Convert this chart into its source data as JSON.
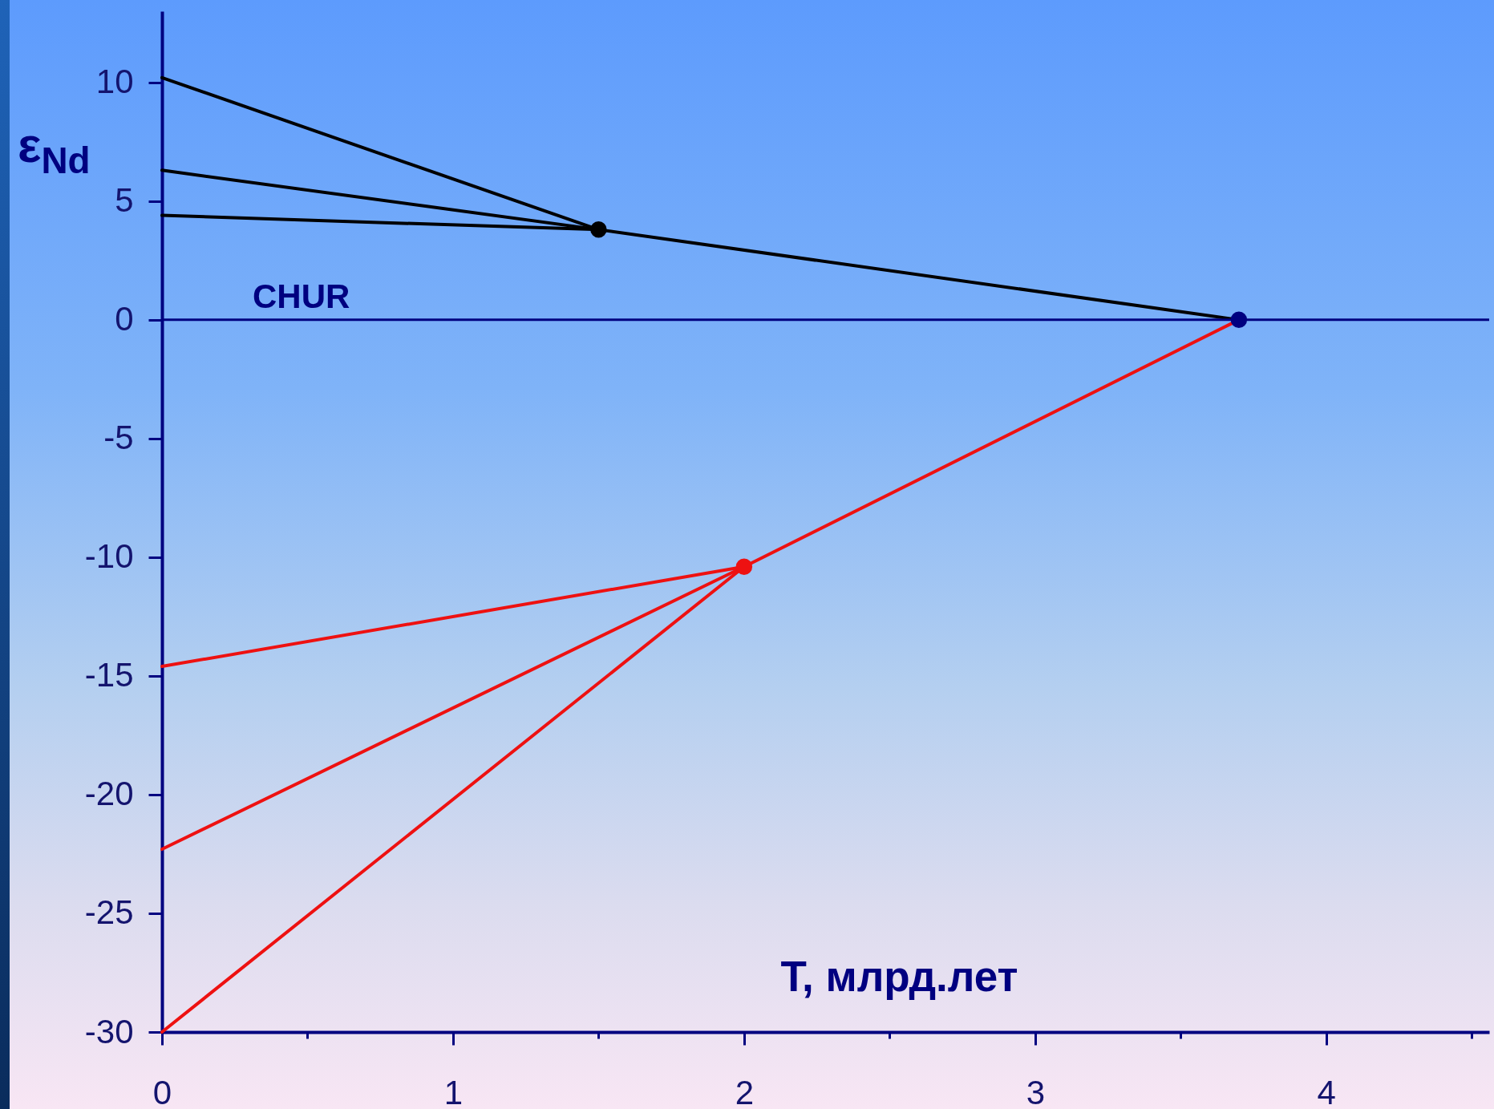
{
  "chart_data": {
    "type": "line",
    "xlabel": "T, млрд.лет",
    "ylabel": "ε$_{Nd}$",
    "xlim": [
      0,
      4.56
    ],
    "xticks": [
      0,
      {
        "value": 0.5,
        "label": null
      },
      1,
      {
        "value": 1.5,
        "label": null
      },
      2,
      {
        "value": 2.5,
        "label": null
      },
      3,
      {
        "value": 3.5,
        "label": null
      },
      4,
      {
        "value": 4.5,
        "label": null
      }
    ],
    "ylim": [
      -30,
      13
    ],
    "yticks": [
      -30,
      -25,
      -20,
      -15,
      -10,
      -5,
      0,
      5,
      10
    ],
    "line_style": "solid",
    "ref_lines": [
      {
        "axis": "y",
        "value": 0,
        "label": "CHUR",
        "color": "#000080"
      }
    ],
    "series": [
      {
        "color": "#000000",
        "x": [
          0,
          1.5,
          3.7
        ],
        "values": [
          10.2,
          3.8,
          0
        ]
      },
      {
        "color": "#000000",
        "x": [
          0,
          1.5
        ],
        "values": [
          6.3,
          3.8
        ]
      },
      {
        "color": "#000000",
        "x": [
          0,
          1.5
        ],
        "values": [
          4.4,
          3.8
        ]
      },
      {
        "color": "#ee1111",
        "x": [
          0,
          2,
          3.7
        ],
        "values": [
          -14.6,
          -10.4,
          0
        ]
      },
      {
        "color": "#ee1111",
        "x": [
          0,
          2
        ],
        "values": [
          -22.3,
          -10.4
        ]
      },
      {
        "color": "#ee1111",
        "x": [
          0,
          2
        ],
        "values": [
          -30,
          -10.4
        ]
      },
      {
        "type": "scatter",
        "marker": "circle",
        "color": "#000000",
        "x": [
          1.5
        ],
        "values": [
          3.8
        ]
      },
      {
        "type": "scatter",
        "marker": "circle",
        "color": "#ee1111",
        "x": [
          2
        ],
        "values": [
          -10.4
        ]
      },
      {
        "type": "scatter",
        "marker": "circle",
        "color": "#000080",
        "x": [
          3.7
        ],
        "values": [
          0
        ]
      }
    ]
  }
}
